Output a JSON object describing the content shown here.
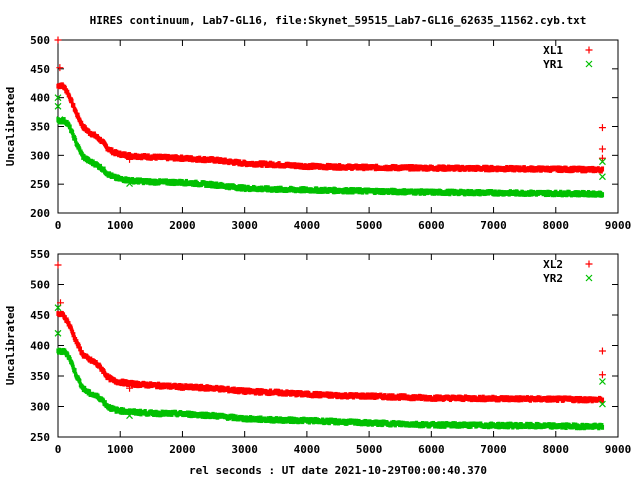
{
  "chart_data": [
    {
      "type": "scatter",
      "title": "HIRES continuum, Lab7-GL16, file:Skynet_59515_Lab7-GL16_62635_11562.cyb.txt",
      "ylabel": "Uncalibrated",
      "xlabel": "",
      "xlim": [
        0,
        9000
      ],
      "ylim": [
        200,
        500
      ],
      "xticks": [
        0,
        1000,
        2000,
        3000,
        4000,
        5000,
        6000,
        7000,
        8000,
        9000
      ],
      "yticks": [
        200,
        250,
        300,
        350,
        400,
        450,
        500
      ],
      "legend_position": "top-right",
      "series": [
        {
          "name": "XL1",
          "marker": "+",
          "color": "#ff0000",
          "curve": [
            [
              0,
              420
            ],
            [
              50,
              422
            ],
            [
              100,
              418
            ],
            [
              150,
              410
            ],
            [
              200,
              398
            ],
            [
              300,
              372
            ],
            [
              400,
              350
            ],
            [
              500,
              340
            ],
            [
              600,
              334
            ],
            [
              700,
              325
            ],
            [
              800,
              312
            ],
            [
              900,
              305
            ],
            [
              1000,
              302
            ],
            [
              1200,
              299
            ],
            [
              1500,
              297
            ],
            [
              2000,
              295
            ],
            [
              2500,
              292
            ],
            [
              3000,
              286
            ],
            [
              3500,
              284
            ],
            [
              4000,
              281
            ],
            [
              4500,
              280
            ],
            [
              5000,
              279
            ],
            [
              6000,
              278
            ],
            [
              7000,
              277
            ],
            [
              8000,
              276
            ],
            [
              8750,
              275
            ]
          ],
          "outliers": [
            [
              0,
              500
            ],
            [
              30,
              452
            ],
            [
              1150,
              293
            ],
            [
              8750,
              348
            ],
            [
              8750,
              311
            ],
            [
              8750,
              295
            ]
          ]
        },
        {
          "name": "YR1",
          "marker": "x",
          "color": "#00c000",
          "curve": [
            [
              0,
              360
            ],
            [
              100,
              360
            ],
            [
              150,
              356
            ],
            [
              200,
              346
            ],
            [
              300,
              320
            ],
            [
              400,
              298
            ],
            [
              500,
              290
            ],
            [
              600,
              285
            ],
            [
              700,
              278
            ],
            [
              800,
              268
            ],
            [
              900,
              262
            ],
            [
              1000,
              259
            ],
            [
              1200,
              256
            ],
            [
              1500,
              254
            ],
            [
              2000,
              253
            ],
            [
              2500,
              249
            ],
            [
              3000,
              243
            ],
            [
              3500,
              241
            ],
            [
              4000,
              240
            ],
            [
              4500,
              239
            ],
            [
              5000,
              238
            ],
            [
              6000,
              236
            ],
            [
              7000,
              235
            ],
            [
              8000,
              234
            ],
            [
              8750,
              233
            ]
          ],
          "outliers": [
            [
              0,
              400
            ],
            [
              0,
              385
            ],
            [
              30,
              362
            ],
            [
              1150,
              251
            ],
            [
              8750,
              289
            ],
            [
              8750,
              263
            ]
          ]
        }
      ]
    },
    {
      "type": "scatter",
      "title": "",
      "ylabel": "Uncalibrated",
      "xlabel": "rel seconds : UT date 2021-10-29T00:00:40.370",
      "xlim": [
        0,
        9000
      ],
      "ylim": [
        250,
        550
      ],
      "xticks": [
        0,
        1000,
        2000,
        3000,
        4000,
        5000,
        6000,
        7000,
        8000,
        9000
      ],
      "yticks": [
        250,
        300,
        350,
        400,
        450,
        500,
        550
      ],
      "legend_position": "top-right",
      "series": [
        {
          "name": "XL2",
          "marker": "+",
          "color": "#ff0000",
          "curve": [
            [
              0,
              450
            ],
            [
              50,
              452
            ],
            [
              100,
              448
            ],
            [
              150,
              440
            ],
            [
              200,
              430
            ],
            [
              300,
              405
            ],
            [
              400,
              385
            ],
            [
              500,
              377
            ],
            [
              600,
              372
            ],
            [
              700,
              362
            ],
            [
              800,
              348
            ],
            [
              900,
              342
            ],
            [
              1000,
              340
            ],
            [
              1200,
              337
            ],
            [
              1500,
              335
            ],
            [
              2000,
              332
            ],
            [
              2500,
              330
            ],
            [
              3000,
              325
            ],
            [
              3500,
              323
            ],
            [
              4000,
              320
            ],
            [
              4500,
              318
            ],
            [
              5000,
              317
            ],
            [
              6000,
              314
            ],
            [
              7000,
              313
            ],
            [
              8000,
              312
            ],
            [
              8750,
              311
            ]
          ],
          "outliers": [
            [
              0,
              532
            ],
            [
              40,
              470
            ],
            [
              1150,
              330
            ],
            [
              8750,
              391
            ],
            [
              8750,
              352
            ]
          ]
        },
        {
          "name": "YR2",
          "marker": "x",
          "color": "#00c000",
          "curve": [
            [
              0,
              390
            ],
            [
              100,
              390
            ],
            [
              150,
              386
            ],
            [
              200,
              376
            ],
            [
              300,
              350
            ],
            [
              400,
              330
            ],
            [
              500,
              322
            ],
            [
              600,
              318
            ],
            [
              700,
              312
            ],
            [
              800,
              300
            ],
            [
              900,
              295
            ],
            [
              1000,
              293
            ],
            [
              1200,
              291
            ],
            [
              1500,
              289
            ],
            [
              2000,
              288
            ],
            [
              2500,
              285
            ],
            [
              3000,
              280
            ],
            [
              3500,
              278
            ],
            [
              4000,
              277
            ],
            [
              4500,
              275
            ],
            [
              5000,
              273
            ],
            [
              6000,
              270
            ],
            [
              7000,
              269
            ],
            [
              8000,
              268
            ],
            [
              8750,
              267
            ]
          ],
          "outliers": [
            [
              0,
              462
            ],
            [
              0,
              420
            ],
            [
              1150,
              285
            ],
            [
              8750,
              341
            ],
            [
              8750,
              304
            ]
          ]
        }
      ]
    }
  ]
}
